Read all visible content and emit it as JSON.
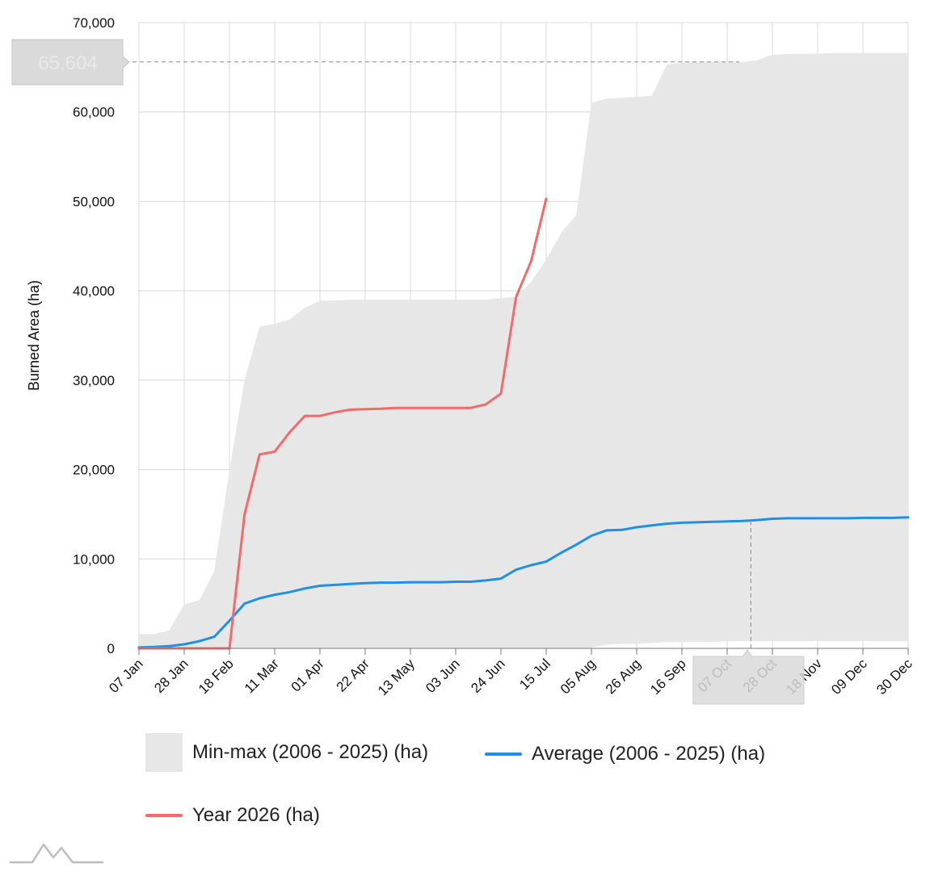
{
  "chart_data": {
    "type": "area",
    "ylabel": "Burned Area (ha)",
    "ylim": [
      0,
      70000
    ],
    "yticks": [
      0,
      10000,
      20000,
      30000,
      40000,
      50000,
      60000,
      70000
    ],
    "ytick_labels": [
      "0",
      "10,000",
      "20,000",
      "30,000",
      "40,000",
      "50,000",
      "60,000",
      "70,000"
    ],
    "xlim": [
      "2026-01-07",
      "2026-12-30"
    ],
    "xticks": [
      "2026-01-07",
      "2026-01-28",
      "2026-02-18",
      "2026-03-11",
      "2026-04-01",
      "2026-04-22",
      "2026-05-13",
      "2026-06-03",
      "2026-06-24",
      "2026-07-15",
      "2026-08-05",
      "2026-08-26",
      "2026-09-16",
      "2026-10-07",
      "2026-10-28",
      "2026-11-18",
      "2026-12-09",
      "2026-12-30"
    ],
    "xtick_labels": [
      "07 Jan",
      "28 Jan",
      "18 Feb",
      "11 Mar",
      "01 Apr",
      "22 Apr",
      "13 May",
      "03 Jun",
      "24 Jun",
      "15 Jul",
      "05 Aug",
      "26 Aug",
      "16 Sep",
      "07 Oct",
      "28 Oct",
      "18 Nov",
      "09 Dec",
      "30 Dec"
    ],
    "grid": true,
    "legend_position": "bottom",
    "crosshair": {
      "value_label": "65,604",
      "value": 65604,
      "date": "2026-10-18"
    },
    "series": [
      {
        "name": "Min-max (2006 - 2025) (ha)",
        "kind": "range",
        "color": "#e7e7e7",
        "x": [
          "2026-01-07",
          "2026-01-14",
          "2026-01-21",
          "2026-01-28",
          "2026-02-04",
          "2026-02-11",
          "2026-02-18",
          "2026-02-25",
          "2026-03-04",
          "2026-03-11",
          "2026-03-18",
          "2026-03-25",
          "2026-04-01",
          "2026-04-08",
          "2026-04-15",
          "2026-04-22",
          "2026-04-29",
          "2026-05-06",
          "2026-05-13",
          "2026-05-20",
          "2026-05-27",
          "2026-06-03",
          "2026-06-10",
          "2026-06-17",
          "2026-06-24",
          "2026-07-01",
          "2026-07-08",
          "2026-07-15",
          "2026-07-22",
          "2026-07-29",
          "2026-08-05",
          "2026-08-12",
          "2026-08-19",
          "2026-08-26",
          "2026-09-02",
          "2026-09-09",
          "2026-09-16",
          "2026-09-23",
          "2026-09-30",
          "2026-10-07",
          "2026-10-14",
          "2026-10-21",
          "2026-10-28",
          "2026-11-04",
          "2026-11-11",
          "2026-11-18",
          "2026-11-25",
          "2026-12-02",
          "2026-12-09",
          "2026-12-16",
          "2026-12-23",
          "2026-12-30"
        ],
        "high": [
          1600,
          1600,
          2000,
          4900,
          5400,
          8700,
          20000,
          30000,
          36000,
          36300,
          36800,
          38100,
          38900,
          38900,
          39000,
          39000,
          39000,
          39000,
          39000,
          39000,
          39000,
          39000,
          39000,
          39000,
          39200,
          39300,
          41000,
          43500,
          46500,
          48500,
          61000,
          61500,
          61600,
          61700,
          61800,
          65300,
          65500,
          65600,
          65604,
          65604,
          65604,
          65800,
          66400,
          66500,
          66500,
          66500,
          66600,
          66600,
          66600,
          66600,
          66600,
          66600
        ],
        "low": [
          0,
          0,
          0,
          0,
          0,
          0,
          0,
          0,
          0,
          0,
          0,
          0,
          0,
          0,
          0,
          0,
          0,
          0,
          0,
          0,
          0,
          0,
          0,
          0,
          0,
          0,
          0,
          0,
          0,
          0,
          100,
          400,
          500,
          500,
          600,
          700,
          700,
          700,
          700,
          800,
          800,
          800,
          800,
          800,
          800,
          800,
          800,
          800,
          800,
          800,
          800,
          800
        ]
      },
      {
        "name": "Average (2006 - 2025) (ha)",
        "kind": "line",
        "color": "#1e90e8",
        "x": [
          "2026-01-07",
          "2026-01-14",
          "2026-01-21",
          "2026-01-28",
          "2026-02-04",
          "2026-02-11",
          "2026-02-18",
          "2026-02-25",
          "2026-03-04",
          "2026-03-11",
          "2026-03-18",
          "2026-03-25",
          "2026-04-01",
          "2026-04-08",
          "2026-04-15",
          "2026-04-22",
          "2026-04-29",
          "2026-05-06",
          "2026-05-13",
          "2026-05-20",
          "2026-05-27",
          "2026-06-03",
          "2026-06-10",
          "2026-06-17",
          "2026-06-24",
          "2026-07-01",
          "2026-07-08",
          "2026-07-15",
          "2026-07-22",
          "2026-07-29",
          "2026-08-05",
          "2026-08-12",
          "2026-08-19",
          "2026-08-26",
          "2026-09-02",
          "2026-09-09",
          "2026-09-16",
          "2026-09-23",
          "2026-09-30",
          "2026-10-07",
          "2026-10-14",
          "2026-10-21",
          "2026-10-28",
          "2026-11-04",
          "2026-11-11",
          "2026-11-18",
          "2026-11-25",
          "2026-12-02",
          "2026-12-09",
          "2026-12-16",
          "2026-12-23",
          "2026-12-30"
        ],
        "values": [
          100,
          150,
          250,
          450,
          800,
          1300,
          3100,
          5000,
          5600,
          6000,
          6300,
          6700,
          7000,
          7100,
          7200,
          7300,
          7350,
          7350,
          7400,
          7400,
          7400,
          7450,
          7450,
          7600,
          7800,
          8800,
          9300,
          9700,
          10700,
          11600,
          12600,
          13200,
          13250,
          13550,
          13750,
          13950,
          14050,
          14100,
          14150,
          14200,
          14250,
          14350,
          14500,
          14550,
          14550,
          14550,
          14550,
          14550,
          14600,
          14600,
          14600,
          14650
        ]
      },
      {
        "name": "Year 2026 (ha)",
        "kind": "line",
        "color": "#f46a6a",
        "x": [
          "2026-01-07",
          "2026-01-14",
          "2026-01-21",
          "2026-01-28",
          "2026-02-04",
          "2026-02-11",
          "2026-02-18",
          "2026-02-25",
          "2026-03-04",
          "2026-03-11",
          "2026-03-18",
          "2026-03-25",
          "2026-04-01",
          "2026-04-08",
          "2026-04-15",
          "2026-04-22",
          "2026-04-29",
          "2026-05-06",
          "2026-05-13",
          "2026-05-20",
          "2026-05-27",
          "2026-06-03",
          "2026-06-10",
          "2026-06-17",
          "2026-06-24",
          "2026-07-01",
          "2026-07-08",
          "2026-07-15",
          "2026-07-22"
        ],
        "values": [
          0,
          0,
          0,
          0,
          0,
          0,
          0,
          15000,
          21700,
          22000,
          24200,
          26000,
          26000,
          26400,
          26700,
          26750,
          26800,
          26900,
          26900,
          26900,
          26900,
          26900,
          26900,
          27300,
          28500,
          39300,
          43300,
          50300,
          null
        ]
      }
    ]
  }
}
